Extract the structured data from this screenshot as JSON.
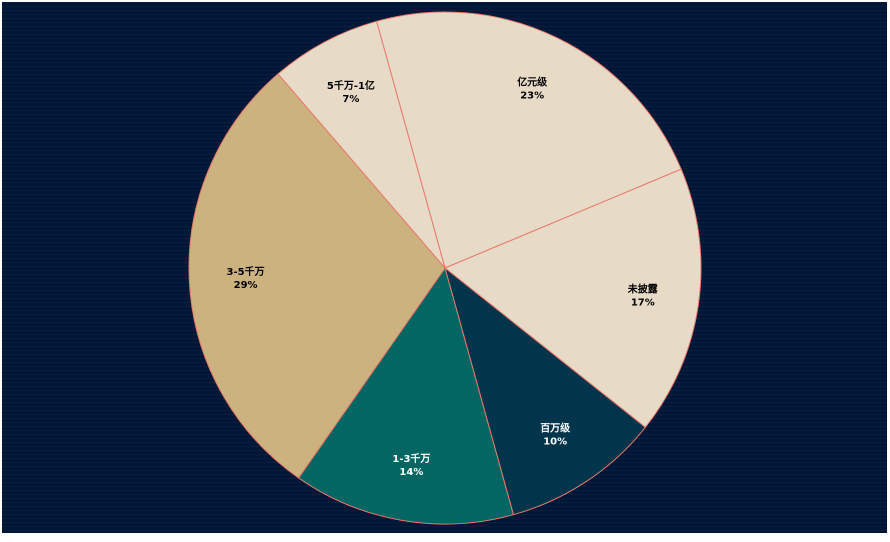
{
  "chart_data": {
    "type": "pie",
    "start_angle_deg": -15.5,
    "direction": "clockwise",
    "background": "#001636",
    "stroke_color": "#e8786a",
    "slices": [
      {
        "label": "亿元级",
        "value": 23,
        "pct_label": "23%",
        "color": "#e7dbc8",
        "text_color": "#000000"
      },
      {
        "label": "未披露",
        "value": 17,
        "pct_label": "17%",
        "color": "#e7dbc8",
        "text_color": "#000000"
      },
      {
        "label": "百万级",
        "value": 10,
        "pct_label": "10%",
        "color": "#02344b",
        "text_color": "#ffffff"
      },
      {
        "label": "1-3千万",
        "value": 14,
        "pct_label": "14%",
        "color": "#036663",
        "text_color": "#ffffff"
      },
      {
        "label": "3-5千万",
        "value": 29,
        "pct_label": "29%",
        "color": "#ccb27f",
        "text_color": "#000000"
      },
      {
        "label": "5千万-1亿",
        "value": 7,
        "pct_label": "7%",
        "color": "#e7dbc8",
        "text_color": "#000000"
      }
    ]
  }
}
